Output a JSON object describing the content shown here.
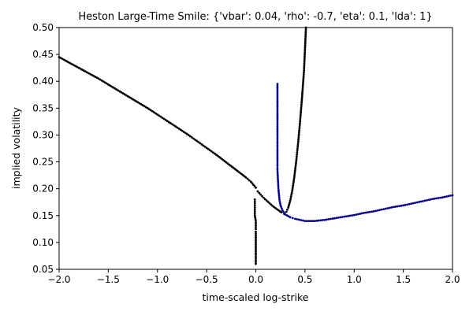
{
  "chart_data": {
    "type": "scatter",
    "title": "Heston Large-Time Smile: {'vbar': 0.04, 'rho': -0.7, 'eta': 0.1, 'lda': 1}",
    "xlabel": "time-scaled log-strike",
    "ylabel": "implied volatility",
    "xlim": [
      -2.0,
      2.0
    ],
    "ylim": [
      0.05,
      0.5
    ],
    "x_ticks": [
      -2.0,
      -1.5,
      -1.0,
      -0.5,
      0.0,
      0.5,
      1.0,
      1.5,
      2.0
    ],
    "x_tick_labels": [
      "−2.0",
      "−1.5",
      "−1.0",
      "−0.5",
      "0.0",
      "0.5",
      "1.0",
      "1.5",
      "2.0"
    ],
    "y_ticks": [
      0.05,
      0.1,
      0.15,
      0.2,
      0.25,
      0.3,
      0.35,
      0.4,
      0.45,
      0.5
    ],
    "y_tick_labels": [
      "0.05",
      "0.10",
      "0.15",
      "0.20",
      "0.25",
      "0.30",
      "0.35",
      "0.40",
      "0.45",
      "0.50"
    ],
    "grid": false,
    "legend": "none",
    "series": [
      {
        "color": "#000000",
        "x": [
          -2.0,
          -1.9,
          -1.8,
          -1.7,
          -1.6,
          -1.5,
          -1.4,
          -1.3,
          -1.2,
          -1.1,
          -1.0,
          -0.9,
          -0.8,
          -0.7,
          -0.6,
          -0.5,
          -0.4,
          -0.3,
          -0.2,
          -0.1,
          -0.05,
          0.0
        ],
        "y": [
          0.445,
          0.435,
          0.425,
          0.415,
          0.405,
          0.394,
          0.383,
          0.372,
          0.361,
          0.35,
          0.338,
          0.326,
          0.314,
          0.302,
          0.289,
          0.276,
          0.263,
          0.249,
          0.235,
          0.221,
          0.213,
          0.202
        ]
      },
      {
        "color": "#000000",
        "x": [
          -0.01,
          -0.01,
          -0.01,
          0.0,
          0.0,
          0.0,
          0.0,
          0.0,
          0.0,
          0.0
        ],
        "y": [
          0.18,
          0.165,
          0.15,
          0.14,
          0.125,
          0.12,
          0.1,
          0.08,
          0.078,
          0.06
        ]
      },
      {
        "color": "#000000",
        "x": [
          0.02,
          0.05,
          0.08,
          0.11,
          0.14,
          0.17,
          0.2,
          0.23,
          0.26,
          0.29
        ],
        "y": [
          0.195,
          0.189,
          0.183,
          0.178,
          0.173,
          0.168,
          0.164,
          0.16,
          0.156,
          0.153
        ]
      },
      {
        "color": "#000000",
        "x": [
          0.29,
          0.31,
          0.33,
          0.35,
          0.37,
          0.39,
          0.41,
          0.43,
          0.45,
          0.47,
          0.49,
          0.5,
          0.51
        ],
        "y": [
          0.153,
          0.157,
          0.165,
          0.178,
          0.196,
          0.22,
          0.25,
          0.285,
          0.325,
          0.37,
          0.42,
          0.46,
          0.5
        ]
      },
      {
        "color": "#00008b",
        "x": [
          0.22,
          0.22,
          0.22,
          0.22,
          0.22,
          0.22,
          0.23,
          0.24,
          0.25,
          0.27,
          0.3,
          0.35,
          0.4,
          0.5,
          0.6,
          0.7,
          0.8,
          0.9,
          1.0,
          1.1,
          1.2,
          1.3,
          1.4,
          1.5,
          1.6,
          1.7,
          1.8,
          1.9,
          2.0
        ],
        "y": [
          0.395,
          0.333,
          0.295,
          0.27,
          0.25,
          0.235,
          0.2,
          0.18,
          0.17,
          0.16,
          0.152,
          0.147,
          0.144,
          0.14,
          0.14,
          0.142,
          0.145,
          0.148,
          0.151,
          0.155,
          0.158,
          0.162,
          0.166,
          0.169,
          0.173,
          0.177,
          0.181,
          0.184,
          0.188
        ]
      }
    ]
  }
}
